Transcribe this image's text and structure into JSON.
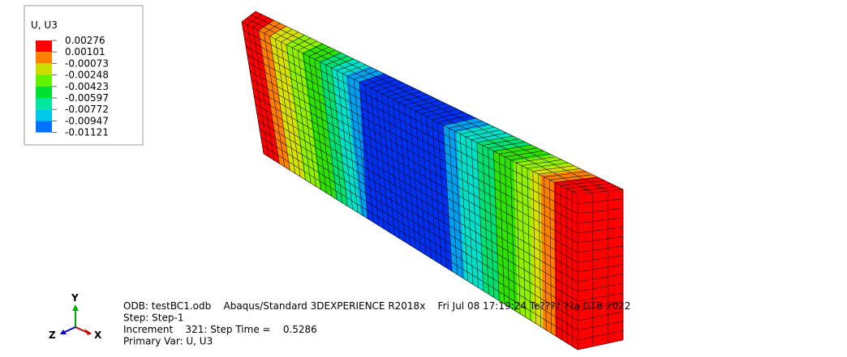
{
  "legend": {
    "title": "U, U3",
    "labels": [
      "0.00276",
      "0.00101",
      "-0.00073",
      "-0.00248",
      "-0.00423",
      "-0.00597",
      "-0.00772",
      "-0.00947",
      "-0.01121"
    ],
    "colors": [
      "#ff0000",
      "#ff8000",
      "#c8e000",
      "#60f000",
      "#00e030",
      "#00e8a0",
      "#00c8e8",
      "#0070ff",
      "#0000f0"
    ]
  },
  "triad": {
    "y": "Y",
    "z": "Z",
    "x": "X"
  },
  "info": {
    "lines": [
      "ODB: testBC1.odb    Abaqus/Standard 3DEXPERIENCE R2018x    Fri Jul 08 17:19:24 Te???? ??a GTB 2022",
      "Step: Step-1",
      "Increment    321: Step Time =    0.5286",
      "Primary Var: U, U3"
    ]
  }
}
